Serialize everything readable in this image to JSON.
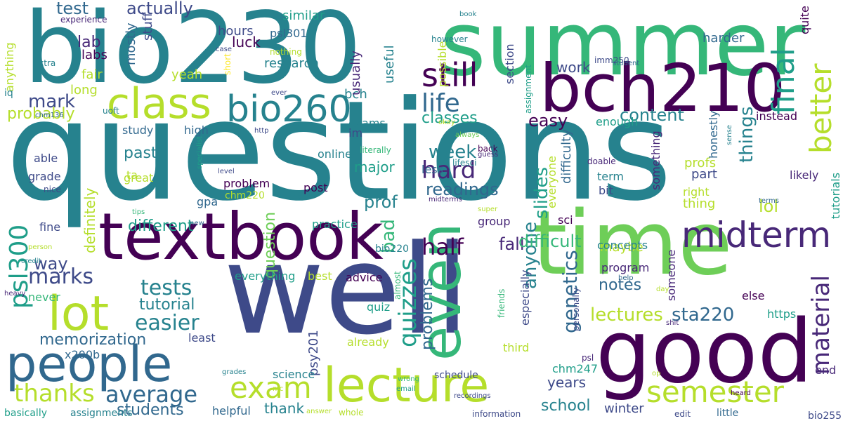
{
  "palette": [
    "#440154",
    "#482878",
    "#3e4a89",
    "#31688e",
    "#26828e",
    "#1f9e89",
    "#35b779",
    "#6ece58",
    "#b5de2b",
    "#fde725"
  ],
  "words": [
    {
      "text": "questions",
      "color": "#26828e"
    },
    {
      "text": "well",
      "color": "#3e4a89"
    },
    {
      "text": "bio230",
      "color": "#26828e"
    },
    {
      "text": "summer",
      "color": "#35b779"
    },
    {
      "text": "time",
      "color": "#6ece58"
    },
    {
      "text": "good",
      "color": "#440154"
    },
    {
      "text": "textbook",
      "color": "#440154"
    },
    {
      "text": "bch210",
      "color": "#440154"
    },
    {
      "text": "people",
      "color": "#31688e"
    },
    {
      "text": "lecture",
      "color": "#b5de2b"
    },
    {
      "text": "even",
      "color": "#35b779"
    },
    {
      "text": "lot",
      "color": "#b5de2b"
    },
    {
      "text": "class",
      "color": "#b5de2b"
    },
    {
      "text": "bio260",
      "color": "#26828e"
    },
    {
      "text": "midterm",
      "color": "#482878"
    },
    {
      "text": "exam",
      "color": "#b5de2b"
    },
    {
      "text": "semester",
      "color": "#b5de2b"
    },
    {
      "text": "still",
      "color": "#440154"
    },
    {
      "text": "final",
      "color": "#1f9e89"
    },
    {
      "text": "better",
      "color": "#b5de2b"
    },
    {
      "text": "life",
      "color": "#31688e"
    },
    {
      "text": "psl300",
      "color": "#1f9e89"
    },
    {
      "text": "thanks",
      "color": "#b5de2b"
    },
    {
      "text": "average",
      "color": "#31688e"
    },
    {
      "text": "hard",
      "color": "#482878"
    },
    {
      "text": "easier",
      "color": "#26828e"
    },
    {
      "text": "tests",
      "color": "#26828e"
    },
    {
      "text": "marks",
      "color": "#3e4a89"
    },
    {
      "text": "material",
      "color": "#482878"
    },
    {
      "text": "half",
      "color": "#440154"
    },
    {
      "text": "quizzes",
      "color": "#1f9e89"
    },
    {
      "text": "genetics",
      "color": "#31688e"
    },
    {
      "text": "lectures",
      "color": "#b5de2b"
    },
    {
      "text": "sta220",
      "color": "#31688e"
    },
    {
      "text": "content",
      "color": "#26828e"
    },
    {
      "text": "things",
      "color": "#26828e"
    },
    {
      "text": "mark",
      "color": "#3e4a89"
    },
    {
      "text": "test",
      "color": "#31688e"
    },
    {
      "text": "actually",
      "color": "#3e4a89"
    },
    {
      "text": "memorization",
      "color": "#31688e"
    },
    {
      "text": "students",
      "color": "#31688e"
    },
    {
      "text": "way",
      "color": "#3e4a89"
    },
    {
      "text": "different",
      "color": "#1f9e89"
    },
    {
      "text": "tutorial",
      "color": "#26828e"
    },
    {
      "text": "readings",
      "color": "#31688e"
    },
    {
      "text": "week",
      "color": "#26828e"
    },
    {
      "text": "anyone",
      "color": "#26828e"
    },
    {
      "text": "slides",
      "color": "#1f9e89"
    },
    {
      "text": "easy",
      "color": "#440154"
    },
    {
      "text": "bad",
      "color": "#35b779"
    },
    {
      "text": "prof",
      "color": "#26828e"
    },
    {
      "text": "question",
      "color": "#6ece58"
    },
    {
      "text": "problems",
      "color": "#31688e"
    },
    {
      "text": "years",
      "color": "#3e4a89"
    },
    {
      "text": "school",
      "color": "#26828e"
    },
    {
      "text": "thank",
      "color": "#26828e"
    },
    {
      "text": "notes",
      "color": "#31688e"
    },
    {
      "text": "classes",
      "color": "#1f9e89"
    },
    {
      "text": "lol",
      "color": "#b5de2b"
    },
    {
      "text": "work",
      "color": "#3e4a89"
    },
    {
      "text": "fall",
      "color": "#482878"
    },
    {
      "text": "difficult",
      "color": "#35b779"
    },
    {
      "text": "probably",
      "color": "#b5de2b"
    },
    {
      "text": "definitely",
      "color": "#b5de2b"
    },
    {
      "text": "past",
      "color": "#26828e"
    },
    {
      "text": "major",
      "color": "#1f9e89"
    },
    {
      "text": "lab",
      "color": "#482878"
    },
    {
      "text": "labs",
      "color": "#440154"
    },
    {
      "text": "luck",
      "color": "#440154"
    },
    {
      "text": "hours",
      "color": "#3e4a89"
    },
    {
      "text": "research",
      "color": "#26828e"
    },
    {
      "text": "similar",
      "color": "#1f9e89"
    },
    {
      "text": "stuff",
      "color": "#3e4a89"
    },
    {
      "text": "mostly",
      "color": "#31688e"
    },
    {
      "text": "bch",
      "color": "#26828e"
    },
    {
      "text": "usually",
      "color": "#482878"
    },
    {
      "text": "useful",
      "color": "#26828e"
    },
    {
      "text": "psl301",
      "color": "#31688e"
    },
    {
      "text": "section",
      "color": "#3e4a89"
    },
    {
      "text": "possible",
      "color": "#b5de2b"
    },
    {
      "text": "harder",
      "color": "#31688e"
    },
    {
      "text": "quite",
      "color": "#440154"
    },
    {
      "text": "yeah",
      "color": "#b5de2b"
    },
    {
      "text": "fair",
      "color": "#b5de2b"
    },
    {
      "text": "long",
      "color": "#b5de2b"
    },
    {
      "text": "study",
      "color": "#31688e"
    },
    {
      "text": "high",
      "color": "#31688e"
    },
    {
      "text": "exams",
      "color": "#26828e"
    },
    {
      "text": "im",
      "color": "#3e4a89"
    },
    {
      "text": "able",
      "color": "#3e4a89"
    },
    {
      "text": "grade",
      "color": "#3e4a89"
    },
    {
      "text": "great",
      "color": "#b5de2b"
    },
    {
      "text": "ta",
      "color": "#b5de2b"
    },
    {
      "text": "online",
      "color": "#26828e"
    },
    {
      "text": "less",
      "color": "#31688e"
    },
    {
      "text": "problem",
      "color": "#440154"
    },
    {
      "text": "chm220",
      "color": "#b5de2b"
    },
    {
      "text": "post",
      "color": "#440154"
    },
    {
      "text": "fine",
      "color": "#3e4a89"
    },
    {
      "text": "practice",
      "color": "#1f9e89"
    },
    {
      "text": "group",
      "color": "#482878"
    },
    {
      "text": "sci",
      "color": "#440154"
    },
    {
      "text": "maybe",
      "color": "#b5de2b"
    },
    {
      "text": "concepts",
      "color": "#26828e"
    },
    {
      "text": "program",
      "color": "#482878"
    },
    {
      "text": "everything",
      "color": "#1f9e89"
    },
    {
      "text": "best",
      "color": "#b5de2b"
    },
    {
      "text": "advice",
      "color": "#440154"
    },
    {
      "text": "bio220",
      "color": "#26828e"
    },
    {
      "text": "already",
      "color": "#b5de2b"
    },
    {
      "text": "quiz",
      "color": "#1f9e89"
    },
    {
      "text": "x200b",
      "color": "#31688e"
    },
    {
      "text": "least",
      "color": "#3e4a89"
    },
    {
      "text": "psy201",
      "color": "#3e4a89"
    },
    {
      "text": "science",
      "color": "#26828e"
    },
    {
      "text": "helpful",
      "color": "#31688e"
    },
    {
      "text": "never",
      "color": "#35b779"
    },
    {
      "text": "schedule",
      "color": "#3e4a89"
    },
    {
      "text": "third",
      "color": "#b5de2b"
    },
    {
      "text": "especially",
      "color": "#3e4a89"
    },
    {
      "text": "chm247",
      "color": "#1f9e89"
    },
    {
      "text": "winter",
      "color": "#3e4a89"
    },
    {
      "text": "https",
      "color": "#1f9e89"
    },
    {
      "text": "else",
      "color": "#440154"
    },
    {
      "text": "end",
      "color": "#482878"
    },
    {
      "text": "enough",
      "color": "#1f9e89"
    },
    {
      "text": "instead",
      "color": "#440154"
    },
    {
      "text": "honestly",
      "color": "#31688e"
    },
    {
      "text": "something",
      "color": "#482878"
    },
    {
      "text": "term",
      "color": "#26828e"
    },
    {
      "text": "bit",
      "color": "#3e4a89"
    },
    {
      "text": "likely",
      "color": "#482878"
    },
    {
      "text": "profs",
      "color": "#b5de2b"
    },
    {
      "text": "part",
      "color": "#3e4a89"
    },
    {
      "text": "right",
      "color": "#b5de2b"
    },
    {
      "text": "thing",
      "color": "#b5de2b"
    },
    {
      "text": "tutorials",
      "color": "#1f9e89"
    },
    {
      "text": "someone",
      "color": "#482878"
    },
    {
      "text": "difficulty",
      "color": "#31688e"
    },
    {
      "text": "everyone",
      "color": "#b5de2b"
    },
    {
      "text": "gpa",
      "color": "#31688e"
    },
    {
      "text": "anything",
      "color": "#b5de2b"
    },
    {
      "text": "experience",
      "color": "#482878"
    },
    {
      "text": "extra",
      "color": "#26828e"
    },
    {
      "text": "iq",
      "color": "#26828e"
    },
    {
      "text": "uoft",
      "color": "#26828e"
    },
    {
      "text": "chm136",
      "color": "#31688e"
    },
    {
      "text": "nice",
      "color": "#3e4a89"
    },
    {
      "text": "tips",
      "color": "#35b779"
    },
    {
      "text": "new",
      "color": "#31688e"
    },
    {
      "text": "specialist",
      "color": "#1f9e89"
    },
    {
      "text": "level",
      "color": "#3e4a89"
    },
    {
      "text": "big",
      "color": "#26828e"
    },
    {
      "text": "http",
      "color": "#3e4a89"
    },
    {
      "text": "ever",
      "color": "#3e4a89"
    },
    {
      "text": "short",
      "color": "#fde725"
    },
    {
      "text": "case",
      "color": "#3e4a89"
    },
    {
      "text": "nothing",
      "color": "#b5de2b"
    },
    {
      "text": "literally",
      "color": "#35b779"
    },
    {
      "text": "lifesci",
      "color": "#26828e"
    },
    {
      "text": "guess",
      "color": "#482878"
    },
    {
      "text": "back",
      "color": "#440154"
    },
    {
      "text": "midterms",
      "color": "#482878"
    },
    {
      "text": "super",
      "color": "#b5de2b"
    },
    {
      "text": "doable",
      "color": "#482878"
    },
    {
      "text": "however",
      "color": "#26828e"
    },
    {
      "text": "book",
      "color": "#26828e"
    },
    {
      "text": "okay",
      "color": "#b5de2b"
    },
    {
      "text": "always",
      "color": "#6ece58"
    },
    {
      "text": "assignment",
      "color": "#1f9e89"
    },
    {
      "text": "imm250",
      "color": "#3e4a89"
    },
    {
      "text": "student",
      "color": "#31688e"
    },
    {
      "text": "sense",
      "color": "#26828e"
    },
    {
      "text": "terms",
      "color": "#31688e"
    },
    {
      "text": "person",
      "color": "#b5de2b"
    },
    {
      "text": "credit",
      "color": "#26828e"
    },
    {
      "text": "heavy",
      "color": "#482878"
    },
    {
      "text": "almost",
      "color": "#35b779"
    },
    {
      "text": "friends",
      "color": "#35b779"
    },
    {
      "text": "personally",
      "color": "#3e4a89"
    },
    {
      "text": "help",
      "color": "#31688e"
    },
    {
      "text": "day",
      "color": "#b5de2b"
    },
    {
      "text": "shit",
      "color": "#482878"
    },
    {
      "text": "op",
      "color": "#b5de2b"
    },
    {
      "text": "heard",
      "color": "#440154"
    },
    {
      "text": "psl",
      "color": "#482878"
    },
    {
      "text": "grades",
      "color": "#26828e"
    },
    {
      "text": "mc",
      "color": "#b5de2b"
    },
    {
      "text": "wrong",
      "color": "#35b779"
    },
    {
      "text": "email",
      "color": "#1f9e89"
    },
    {
      "text": "recordings",
      "color": "#3e4a89"
    },
    {
      "text": "basically",
      "color": "#1f9e89"
    },
    {
      "text": "assignments",
      "color": "#26828e"
    },
    {
      "text": "answer",
      "color": "#b5de2b"
    },
    {
      "text": "whole",
      "color": "#b5de2b"
    },
    {
      "text": "information",
      "color": "#3e4a89"
    },
    {
      "text": "edit",
      "color": "#3e4a89"
    },
    {
      "text": "little",
      "color": "#31688e"
    },
    {
      "text": "bio255",
      "color": "#3e4a89"
    }
  ]
}
